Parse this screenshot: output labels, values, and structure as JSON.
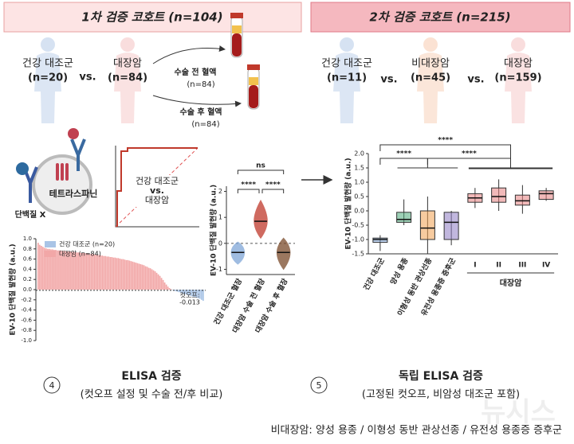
{
  "cohort1": {
    "title": "1차 검증 코호트 (n=104)",
    "groups": [
      {
        "name": "건강 대조군",
        "n": "(n=20)"
      },
      {
        "name": "대장암",
        "n": "(n=84)"
      }
    ],
    "vs": "vs.",
    "samples": [
      {
        "name": "수술 전 혈액",
        "n": "(n=84)"
      },
      {
        "name": "수술 후 혈액",
        "n": "(n=84)"
      }
    ],
    "tetraspanin": "테트라스파닌",
    "protein": "단백질 X",
    "roc_label": [
      "건강 대조군",
      "vs.",
      "대장암"
    ]
  },
  "cohort2": {
    "title": "2차 검증 코호트 (n=215)",
    "groups": [
      {
        "name": "건강 대조군",
        "n": "(n=11)"
      },
      {
        "name": "비대장암",
        "n": "(n=45)"
      },
      {
        "name": "대장암",
        "n": "(n=159)"
      }
    ],
    "vs": "vs."
  },
  "chart_data": [
    {
      "type": "waterfall",
      "ylabel": "EV-10 단백질 발현량 (a.u.)",
      "series": [
        {
          "name": "건강 대조군 (n=20)",
          "color": "#a9c4e6",
          "values": [
            -0.01,
            -0.02,
            -0.03,
            -0.04,
            -0.05,
            -0.06,
            -0.07,
            -0.08,
            -0.09,
            -0.1,
            -0.11,
            -0.12,
            -0.13,
            -0.14,
            -0.15,
            -0.16,
            -0.17,
            -0.18,
            -0.2,
            -0.22
          ]
        },
        {
          "name": "대장암 (n=84)",
          "color": "#f2a7a7",
          "values": [
            0.92,
            0.88,
            0.86,
            0.84,
            0.82,
            0.81,
            0.8,
            0.8,
            0.79,
            0.79,
            0.78,
            0.78,
            0.77,
            0.77,
            0.77,
            0.76,
            0.76,
            0.76,
            0.75,
            0.75,
            0.75,
            0.74,
            0.74,
            0.74,
            0.73,
            0.73,
            0.73,
            0.72,
            0.72,
            0.72,
            0.71,
            0.71,
            0.7,
            0.7,
            0.7,
            0.69,
            0.69,
            0.68,
            0.68,
            0.67,
            0.67,
            0.66,
            0.66,
            0.65,
            0.65,
            0.64,
            0.64,
            0.63,
            0.63,
            0.62,
            0.62,
            0.61,
            0.6,
            0.6,
            0.59,
            0.58,
            0.58,
            0.57,
            0.56,
            0.55,
            0.54,
            0.53,
            0.52,
            0.51,
            0.5,
            0.49,
            0.48,
            0.46,
            0.45,
            0.43,
            0.42,
            0.4,
            0.38,
            0.36,
            0.33,
            0.3,
            0.27,
            0.23,
            0.19,
            0.14,
            0.1,
            0.06,
            0.03,
            0.01
          ]
        }
      ],
      "ylim": [
        -1,
        1
      ],
      "yticks": [
        {
          "value": 1,
          "label": "1.0"
        },
        0.8,
        0.6,
        0.4,
        0.2,
        {
          "value": 0,
          "label": "0.0"
        },
        -0.2,
        -0.4,
        -0.6,
        -0.8,
        {
          "value": -1,
          "label": "-1.0"
        }
      ],
      "cutoff_label": "컷오프:",
      "cutoff": -0.013
    },
    {
      "type": "violin",
      "ylabel": "EV-10 단백질 발현량 (a.u.)",
      "categories": [
        "건강 대조군 혈장",
        "대장암 수술 전 혈장",
        "대장암 수술 후 혈장"
      ],
      "colors": [
        "#7fa6d8",
        "#c0392b",
        "#7a4a2a"
      ],
      "median": [
        -0.35,
        0.85,
        -0.35
      ],
      "min": [
        -0.8,
        0.2,
        -1.0
      ],
      "max": [
        0.05,
        1.65,
        0.2
      ],
      "ylim": [
        -1.2,
        2.2
      ],
      "yticks": [
        -1,
        0,
        1,
        2
      ],
      "reference_line": 0,
      "comparisons": [
        {
          "pair": [
            0,
            1
          ],
          "label": "****"
        },
        {
          "pair": [
            1,
            2
          ],
          "label": "****"
        },
        {
          "pair": [
            0,
            2
          ],
          "label": "ns"
        }
      ]
    },
    {
      "type": "box",
      "ylabel": "EV-10 단백질 발현량 (a.u.)",
      "categories": [
        "건강 대조군",
        "양성 용종",
        "이형성 동반 관상선종",
        "유전성 용종증 증후군",
        "I",
        "II",
        "III",
        "IV"
      ],
      "colors": [
        "#7fa6d8",
        "#4daa7a",
        "#f0a050",
        "#8e7cc3",
        "#e58080",
        "#e58080",
        "#e58080",
        "#e58080"
      ],
      "min": [
        -1.4,
        -0.5,
        -1.5,
        -1.2,
        0.1,
        0.0,
        -0.1,
        0.35
      ],
      "q1": [
        -1.1,
        -0.4,
        -1.0,
        -1.0,
        0.3,
        0.3,
        0.2,
        0.4
      ],
      "median": [
        -1.0,
        -0.3,
        -0.6,
        -0.4,
        0.45,
        0.5,
        0.35,
        0.6
      ],
      "q3": [
        -0.95,
        -0.05,
        0.0,
        -0.05,
        0.6,
        0.8,
        0.55,
        0.7
      ],
      "max": [
        -0.85,
        0.4,
        0.5,
        0.0,
        0.8,
        1.1,
        0.9,
        0.8
      ],
      "ylim": [
        -1.5,
        2.0
      ],
      "yticks": [
        -1.5,
        {
          "value": -1,
          "label": "-1.0"
        },
        -0.5,
        {
          "value": 0,
          "label": "0.0"
        },
        0.5,
        {
          "value": 1,
          "label": "1.0"
        },
        1.5,
        {
          "value": 2,
          "label": "2.0"
        }
      ],
      "comparisons": [
        {
          "from": [
            0,
            0
          ],
          "to": [
            1,
            3
          ],
          "label": "****"
        },
        {
          "from": [
            0,
            0
          ],
          "to": [
            4,
            7
          ],
          "label": "****"
        },
        {
          "from": [
            1,
            3
          ],
          "to": [
            4,
            7
          ],
          "label": "****"
        }
      ],
      "group_label": {
        "text": "대장암",
        "range": [
          4,
          7
        ]
      }
    }
  ],
  "captions": [
    {
      "number": "4",
      "title": "ELISA 검증",
      "subtitle": "(컷오프 설정 및 수술 전/후 비교)"
    },
    {
      "number": "5",
      "title": "독립 ELISA 검증",
      "subtitle": "(고정된 컷오프, 비암성 대조군 포함)"
    }
  ],
  "footnote": "비대장암: 양성 용종 / 이형성 동반 관상선종 / 유전성 용종증 증후군",
  "watermark": "뉴시스"
}
